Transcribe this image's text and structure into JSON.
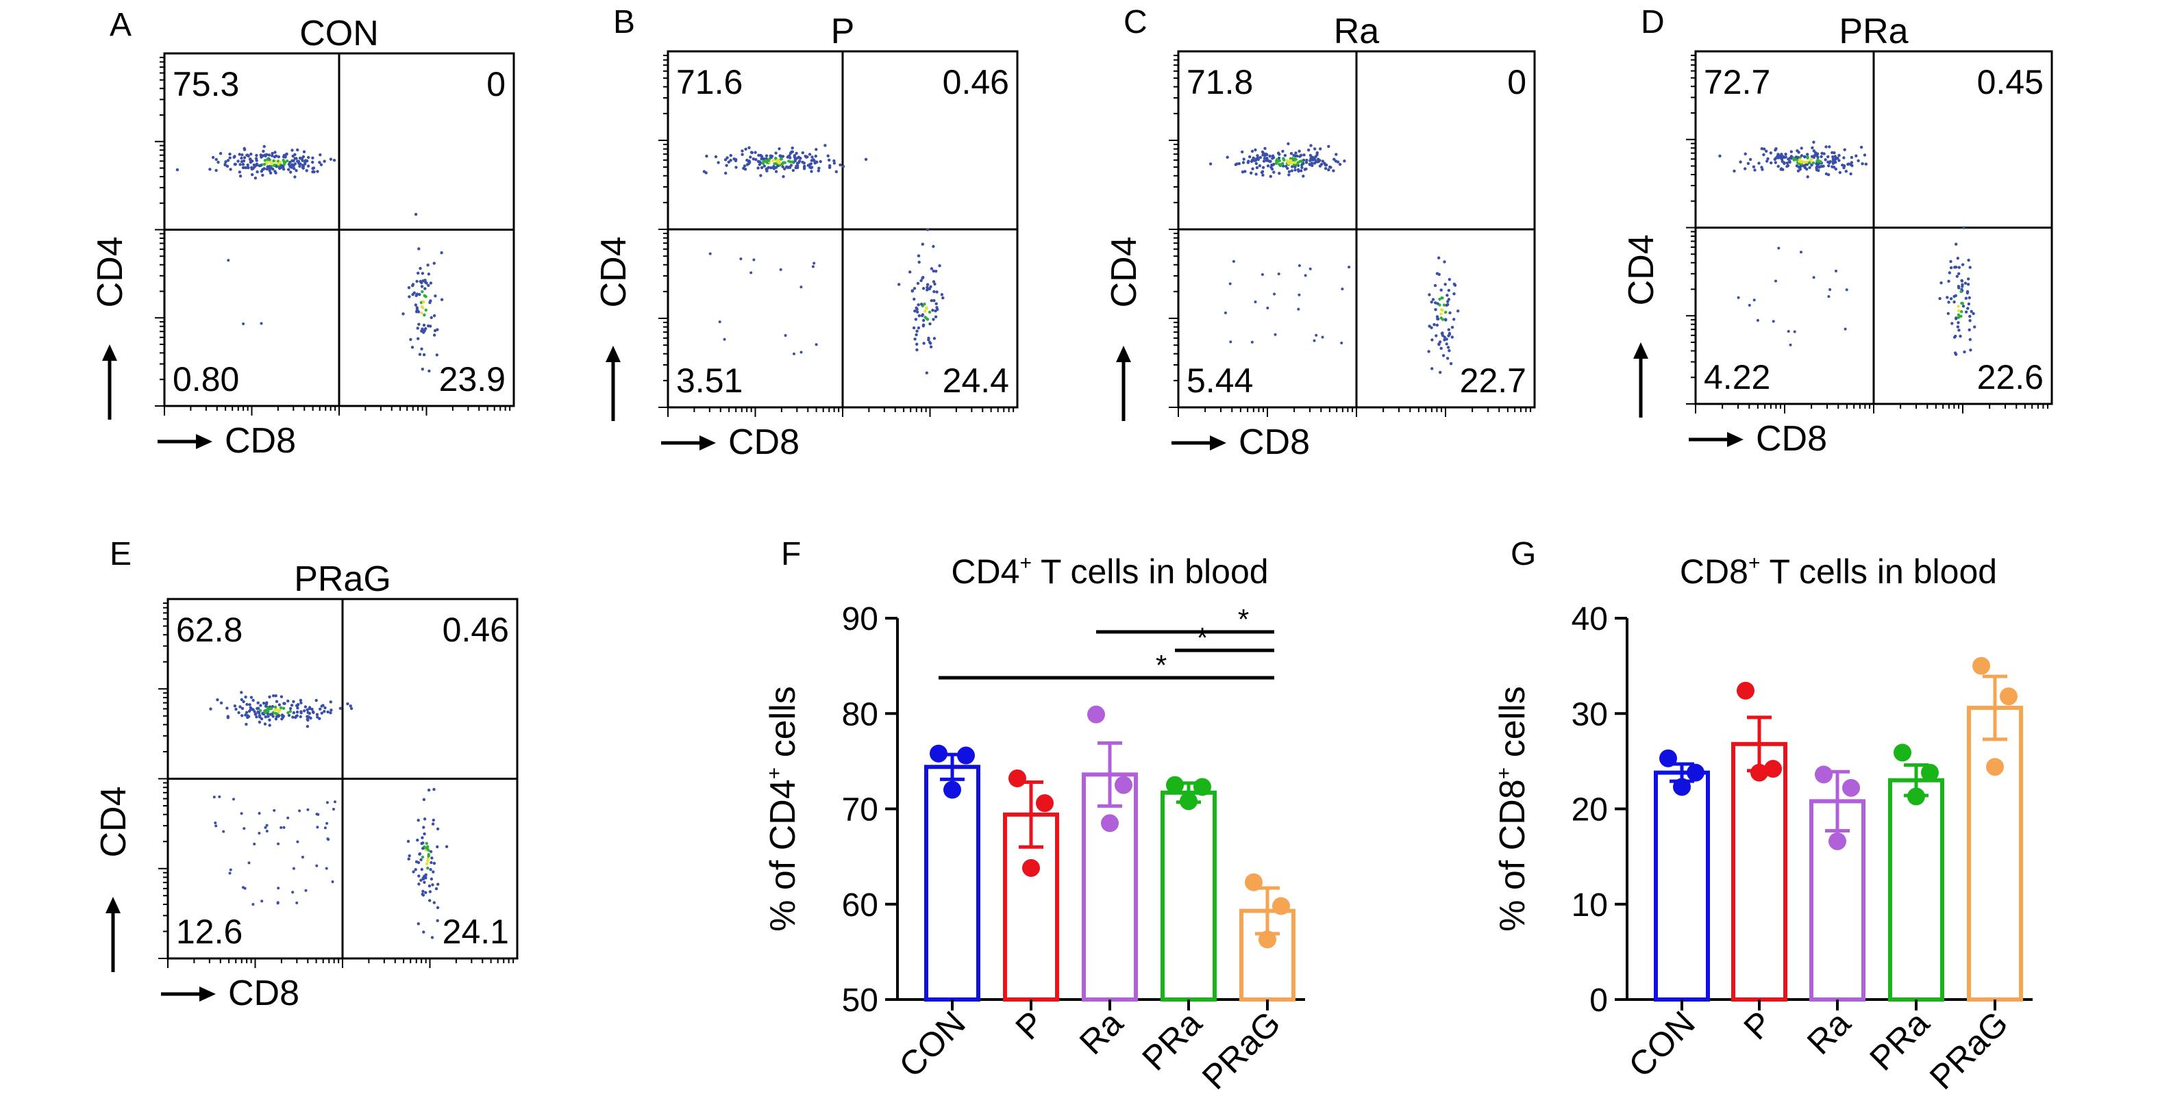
{
  "figure": {
    "flow_axis_x": "CD8",
    "flow_axis_y": "CD4"
  },
  "chart_data": [
    {
      "panel": "A",
      "type": "scatter",
      "title": "CON",
      "xlabel": "CD8",
      "ylabel": "CD4",
      "quadrants": {
        "upper_left": "75.3",
        "upper_right": "0",
        "lower_left": "0.80",
        "lower_right": "23.9"
      }
    },
    {
      "panel": "B",
      "type": "scatter",
      "title": "P",
      "xlabel": "CD8",
      "ylabel": "CD4",
      "quadrants": {
        "upper_left": "71.6",
        "upper_right": "0.46",
        "lower_left": "3.51",
        "lower_right": "24.4"
      }
    },
    {
      "panel": "C",
      "type": "scatter",
      "title": "Ra",
      "xlabel": "CD8",
      "ylabel": "CD4",
      "quadrants": {
        "upper_left": "71.8",
        "upper_right": "0",
        "lower_left": "5.44",
        "lower_right": "22.7"
      }
    },
    {
      "panel": "D",
      "type": "scatter",
      "title": "PRa",
      "xlabel": "CD8",
      "ylabel": "CD4",
      "quadrants": {
        "upper_left": "72.7",
        "upper_right": "0.45",
        "lower_left": "4.22",
        "lower_right": "22.6"
      }
    },
    {
      "panel": "E",
      "type": "scatter",
      "title": "PRaG",
      "xlabel": "CD8",
      "ylabel": "CD4",
      "quadrants": {
        "upper_left": "62.8",
        "upper_right": "0.46",
        "lower_left": "12.6",
        "lower_right": "24.1"
      }
    },
    {
      "panel": "F",
      "type": "bar",
      "title_main": "CD4",
      "title_sup": "+",
      "title_rest": " T cells in blood",
      "ylabel_main": "% of CD4",
      "ylabel_sup": "+",
      "ylabel_rest": " cells",
      "ylim": [
        50,
        90
      ],
      "yticks": [
        50,
        60,
        70,
        80,
        90
      ],
      "categories": [
        "CON",
        "P",
        "Ra",
        "PRa",
        "PRaG"
      ],
      "colors": [
        "#1010e0",
        "#e8131b",
        "#b060d8",
        "#18b418",
        "#f5a452"
      ],
      "means": [
        74.4,
        69.4,
        73.6,
        71.7,
        59.3
      ],
      "sem": [
        1.3,
        3.4,
        3.3,
        1.0,
        2.4
      ],
      "points": [
        [
          75.8,
          75.6,
          72.0
        ],
        [
          73.2,
          70.6,
          63.8
        ],
        [
          79.9,
          72.5,
          68.5
        ],
        [
          72.5,
          72.3,
          70.8
        ],
        [
          62.3,
          59.8,
          56.3
        ]
      ],
      "significance": [
        {
          "from": "Ra",
          "to": "PRaG",
          "label": "*"
        },
        {
          "from": "PRa",
          "to": "PRaG",
          "label": "*"
        },
        {
          "from": "CON",
          "to": "PRaG",
          "label": "*"
        }
      ]
    },
    {
      "panel": "G",
      "type": "bar",
      "title_main": "CD8",
      "title_sup": "+",
      "title_rest": " T cells in blood",
      "ylabel_main": "% of CD8",
      "ylabel_sup": "+",
      "ylabel_rest": " cells",
      "ylim": [
        0,
        40
      ],
      "yticks": [
        0,
        10,
        20,
        30,
        40
      ],
      "categories": [
        "CON",
        "P",
        "Ra",
        "PRa",
        "PRaG"
      ],
      "colors": [
        "#1010e0",
        "#e8131b",
        "#b060d8",
        "#18b418",
        "#f5a452"
      ],
      "means": [
        23.8,
        26.8,
        20.8,
        23.0,
        30.6
      ],
      "sem": [
        0.9,
        2.8,
        3.1,
        1.6,
        3.3
      ],
      "points": [
        [
          25.3,
          23.8,
          22.3
        ],
        [
          32.4,
          24.2,
          23.8
        ],
        [
          23.6,
          22.2,
          16.6
        ],
        [
          25.9,
          23.8,
          21.3
        ],
        [
          35.0,
          31.8,
          24.4
        ]
      ],
      "significance": []
    }
  ]
}
